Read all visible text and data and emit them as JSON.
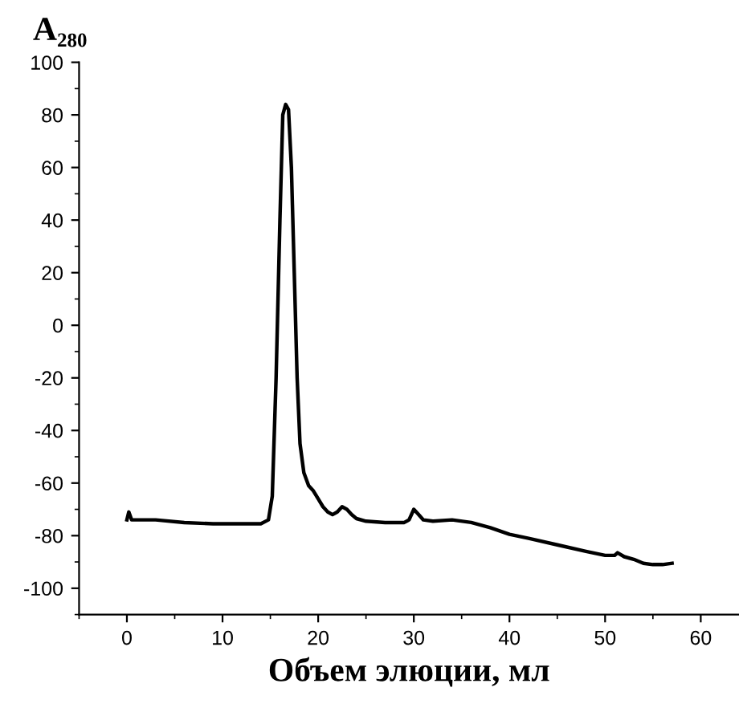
{
  "chart_data": {
    "type": "line",
    "xlabel": "Объем элюции, мл",
    "ylabel": "A₂₈₀",
    "series": [
      {
        "color": "#000000",
        "x": [
          0,
          0.2,
          0.5,
          1,
          3,
          6,
          9,
          12,
          14,
          14.8,
          15.2,
          15.6,
          16,
          16.3,
          16.6,
          16.9,
          17.2,
          17.5,
          17.8,
          18.1,
          18.5,
          19,
          19.5,
          20,
          20.5,
          21,
          21.5,
          22,
          22.5,
          23,
          23.5,
          24,
          25,
          27,
          29,
          29.5,
          30,
          30.5,
          31,
          32,
          34,
          36,
          38,
          40,
          42,
          45,
          48,
          50,
          51,
          51.3,
          52,
          53,
          54,
          55,
          56,
          57
        ],
        "values": [
          -74,
          -71,
          -74,
          -74,
          -74,
          -75,
          -75.5,
          -75.5,
          -75.5,
          -74,
          -65,
          -20,
          40,
          80,
          84,
          82,
          60,
          20,
          -20,
          -45,
          -56,
          -61,
          -63,
          -66,
          -69,
          -71,
          -72,
          -71,
          -69,
          -70,
          -72,
          -73.5,
          -74.5,
          -75,
          -75,
          -74,
          -70,
          -72,
          -74,
          -74.5,
          -74,
          -75,
          -77,
          -79.5,
          -81,
          -83.5,
          -86,
          -87.5,
          -87.5,
          -86.5,
          -88,
          -89,
          -90.5,
          -91,
          -91,
          -90.5
        ]
      }
    ],
    "xlim": [
      -5,
      64
    ],
    "ylim": [
      -110,
      100
    ],
    "xticks": [
      0,
      10,
      20,
      30,
      40,
      50,
      60
    ],
    "yticks": [
      -100,
      -80,
      -60,
      -40,
      -20,
      0,
      20,
      40,
      60,
      80,
      100
    ],
    "grid": false,
    "legend": false,
    "marker": "none",
    "line_style": "solid"
  }
}
